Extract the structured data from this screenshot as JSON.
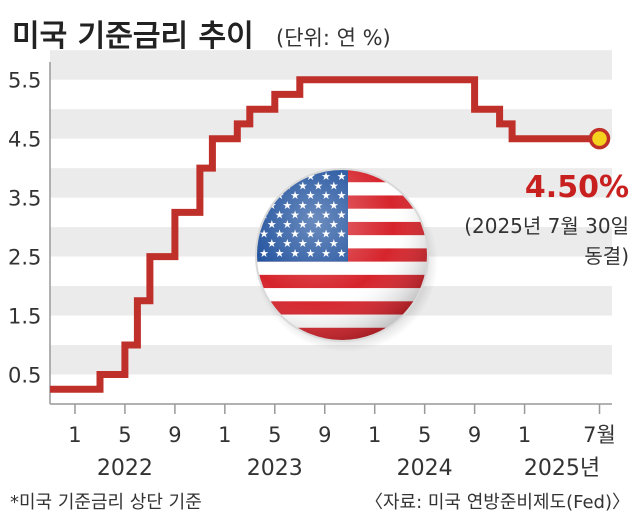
{
  "title": "미국 기준금리 추이",
  "unit_note": "(단위: 연 %)",
  "footnote": "*미국 기준금리 상단 기준",
  "source": "〈자료:  미국 연방준비제도(Fed)〉",
  "callout": {
    "value": "4.50%",
    "note_line1": "(2025년 7월 30일",
    "note_line2": "동결)"
  },
  "colors": {
    "line": "#c0302a",
    "band": "#ebebeb",
    "marker_fill": "#f5d21e",
    "callout": "#c8201f"
  },
  "decoration": "us-flag-badge",
  "chart_data": {
    "type": "line",
    "step": true,
    "title": "미국 기준금리 추이",
    "unit": "연 %",
    "xlim": [
      "2021-11",
      "2025-08"
    ],
    "ylim": [
      0.0,
      5.8
    ],
    "y_ticks": [
      0.5,
      1.5,
      2.5,
      3.5,
      4.5,
      5.5
    ],
    "y_tick_labels": [
      "0.5",
      "1.5",
      "2.5",
      "3.5",
      "4.5",
      "5.5"
    ],
    "x_ticks": [
      {
        "x": "2022-01",
        "label": "1"
      },
      {
        "x": "2022-05",
        "label": "5"
      },
      {
        "x": "2022-09",
        "label": "9"
      },
      {
        "x": "2023-01",
        "label": "1"
      },
      {
        "x": "2023-05",
        "label": "5"
      },
      {
        "x": "2023-09",
        "label": "9"
      },
      {
        "x": "2024-01",
        "label": "1"
      },
      {
        "x": "2024-05",
        "label": "5"
      },
      {
        "x": "2024-09",
        "label": "9"
      },
      {
        "x": "2025-01",
        "label": "1"
      },
      {
        "x": "2025-07",
        "label": "7월"
      }
    ],
    "year_labels": [
      {
        "x": "2022-05",
        "label": "2022"
      },
      {
        "x": "2023-05",
        "label": "2023"
      },
      {
        "x": "2024-05",
        "label": "2024"
      },
      {
        "x": "2025-04",
        "label": "2025년"
      }
    ],
    "grid": "horizontal-bands",
    "series": [
      {
        "values": [
          {
            "x": "2021-11",
            "y": 0.25
          },
          {
            "x": "2022-03",
            "y": 0.5
          },
          {
            "x": "2022-05",
            "y": 1.0
          },
          {
            "x": "2022-06",
            "y": 1.75
          },
          {
            "x": "2022-07",
            "y": 2.5
          },
          {
            "x": "2022-09",
            "y": 3.25
          },
          {
            "x": "2022-11",
            "y": 4.0
          },
          {
            "x": "2022-12",
            "y": 4.5
          },
          {
            "x": "2023-02",
            "y": 4.75
          },
          {
            "x": "2023-03",
            "y": 5.0
          },
          {
            "x": "2023-05",
            "y": 5.25
          },
          {
            "x": "2023-07",
            "y": 5.5
          },
          {
            "x": "2024-09",
            "y": 5.0
          },
          {
            "x": "2024-11",
            "y": 4.75
          },
          {
            "x": "2024-12",
            "y": 4.5
          },
          {
            "x": "2025-07",
            "y": 4.5
          }
        ]
      }
    ]
  }
}
